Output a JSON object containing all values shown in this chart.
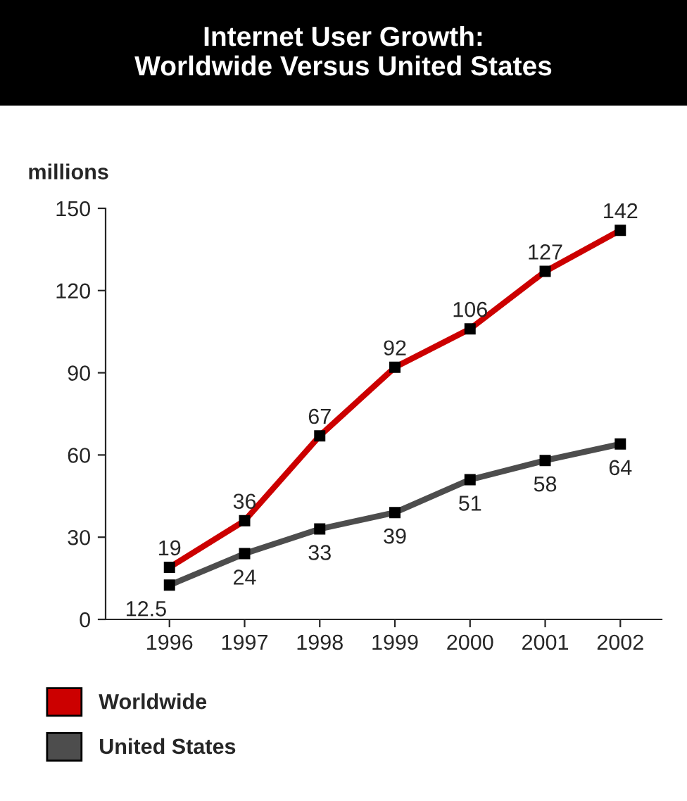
{
  "chart_data": {
    "type": "line",
    "title": "Internet User Growth:\nWorldwide Versus United States",
    "ylabel": "millions",
    "categories": [
      "1996",
      "1997",
      "1998",
      "1999",
      "2000",
      "2001",
      "2002"
    ],
    "series": [
      {
        "name": "Worldwide",
        "color": "#cc0000",
        "values": [
          19,
          36,
          67,
          92,
          106,
          127,
          142
        ]
      },
      {
        "name": "United States",
        "color": "#4d4d4d",
        "values": [
          12.5,
          24,
          33,
          39,
          51,
          58,
          64
        ]
      }
    ],
    "ylim": [
      0,
      150
    ],
    "yticks": [
      0,
      30,
      60,
      90,
      120,
      150
    ],
    "grid": false,
    "legend": "bottom",
    "marker": "square",
    "line_style": "solid",
    "data_labels": true
  }
}
